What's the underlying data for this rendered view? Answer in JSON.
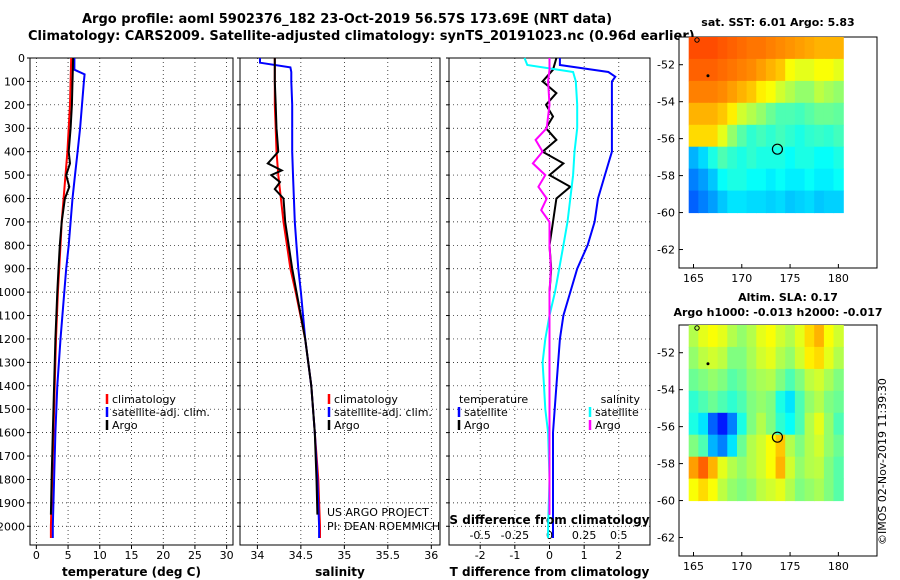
{
  "header": {
    "line1": "Argo profile: aoml 5902376_182 23-Oct-2019 56.57S 173.69E (NRT data)",
    "line2": "Climatology: CARS2009. Satellite-adjusted climatology: synTS_20191023.nc (0.96d earlier)"
  },
  "credits": {
    "project": "US ARGO PROJECT",
    "pi": "PI: DEAN ROEMMICH"
  },
  "timestamp": "©IMOS 02-Nov-2019 11:39:30",
  "colors": {
    "climatology": "#ff0000",
    "satellite": "#0000ff",
    "argo": "#000000",
    "salinity_satellite": "#00ffff",
    "salinity_argo": "#ff00ff"
  },
  "chart_data": [
    {
      "type": "line",
      "title": "",
      "xlabel": "temperature (deg C)",
      "ylabel": "",
      "xlim": [
        -1,
        31
      ],
      "ylim": [
        2080,
        0
      ],
      "xticks": [
        0,
        5,
        10,
        15,
        20,
        25,
        30
      ],
      "yticks": [
        0,
        100,
        200,
        300,
        400,
        500,
        600,
        700,
        800,
        900,
        1000,
        1100,
        1200,
        1300,
        1400,
        1500,
        1600,
        1700,
        1800,
        1900,
        2000
      ],
      "legend": [
        "climatology",
        "satellite-adj. clim.",
        "Argo"
      ],
      "series": [
        {
          "name": "climatology",
          "depth": [
            0,
            100,
            200,
            300,
            400,
            500,
            600,
            700,
            800,
            900,
            1000,
            1200,
            1400,
            1600,
            1800,
            2000,
            2050
          ],
          "values": [
            5.5,
            5.4,
            5.3,
            5.1,
            4.9,
            4.6,
            4.3,
            4.0,
            3.8,
            3.6,
            3.4,
            3.1,
            2.9,
            2.7,
            2.5,
            2.3,
            2.3
          ]
        },
        {
          "name": "satellite-adj. clim.",
          "depth": [
            0,
            50,
            70,
            100,
            200,
            300,
            400,
            500,
            600,
            700,
            800,
            900,
            1000,
            1200,
            1400,
            1600,
            1800,
            2000,
            2050
          ],
          "values": [
            6.0,
            6.0,
            7.6,
            7.5,
            7.2,
            6.9,
            6.5,
            6.1,
            5.7,
            5.4,
            5.1,
            4.7,
            4.4,
            3.8,
            3.3,
            3.0,
            2.8,
            2.6,
            2.6
          ]
        },
        {
          "name": "Argo",
          "depth": [
            0,
            100,
            200,
            300,
            400,
            450,
            500,
            550,
            600,
            700,
            800,
            900,
            1000,
            1200,
            1400,
            1600,
            1800,
            1950
          ],
          "values": [
            5.8,
            5.7,
            5.6,
            5.4,
            5.1,
            5.3,
            4.7,
            5.2,
            4.5,
            4.0,
            3.7,
            3.5,
            3.3,
            3.0,
            2.8,
            2.6,
            2.4,
            2.3
          ]
        }
      ]
    },
    {
      "type": "line",
      "title": "",
      "xlabel": "salinity",
      "ylabel": "",
      "xlim": [
        33.8,
        36.1
      ],
      "ylim": [
        2080,
        0
      ],
      "xticks": [
        34,
        34.5,
        35,
        35.5,
        36
      ],
      "legend": [
        "climatology",
        "satellite-adj. clim.",
        "Argo"
      ],
      "series": [
        {
          "name": "climatology",
          "depth": [
            0,
            100,
            200,
            300,
            400,
            500,
            600,
            700,
            800,
            900,
            1000,
            1200,
            1400,
            1600,
            1800,
            2000,
            2050
          ],
          "values": [
            34.2,
            34.2,
            34.2,
            34.21,
            34.22,
            34.24,
            34.27,
            34.3,
            34.34,
            34.38,
            34.44,
            34.55,
            34.62,
            34.66,
            34.7,
            34.72,
            34.72
          ]
        },
        {
          "name": "satellite-adj. clim.",
          "depth": [
            0,
            20,
            40,
            60,
            100,
            200,
            300,
            400,
            500,
            600,
            700,
            800,
            900,
            1000,
            1200,
            1400,
            1600,
            1800,
            2000,
            2050
          ],
          "values": [
            34.03,
            34.03,
            34.38,
            34.39,
            34.39,
            34.4,
            34.4,
            34.4,
            34.41,
            34.42,
            34.43,
            34.45,
            34.47,
            34.5,
            34.55,
            34.62,
            34.66,
            34.69,
            34.71,
            34.71
          ]
        },
        {
          "name": "Argo",
          "depth": [
            0,
            100,
            200,
            300,
            400,
            450,
            480,
            500,
            530,
            560,
            600,
            700,
            800,
            900,
            1000,
            1200,
            1400,
            1600,
            1800,
            1950
          ],
          "values": [
            34.2,
            34.2,
            34.21,
            34.22,
            34.24,
            34.12,
            34.28,
            34.16,
            34.26,
            34.2,
            34.3,
            34.32,
            34.36,
            34.4,
            34.45,
            34.55,
            34.62,
            34.66,
            34.68,
            34.69
          ]
        }
      ]
    },
    {
      "type": "line",
      "title": "",
      "xlabel": "T difference from climatology",
      "xlabel2": "S difference from climatology",
      "ylabel": "",
      "xlim": [
        -2.9,
        2.9
      ],
      "ylim": [
        2080,
        0
      ],
      "xticks": [
        -2,
        -1,
        0,
        1,
        2
      ],
      "xticks2": [
        -0.5,
        -0.25,
        0,
        0.25,
        0.5
      ],
      "xticklabels2": [
        "-0.5",
        "-0.25",
        "0",
        "0.25",
        "0.5"
      ],
      "legend_titles": [
        "temperature",
        "salinity"
      ],
      "legend": [
        "satellite",
        "Argo",
        "satellite",
        "Argo"
      ],
      "series": [
        {
          "name": "temperature satellite",
          "depth": [
            0,
            30,
            60,
            80,
            100,
            200,
            300,
            400,
            500,
            600,
            700,
            800,
            900,
            1000,
            1100,
            1200,
            1400,
            1600,
            1800,
            2000,
            2050
          ],
          "values": [
            0.3,
            0.3,
            1.7,
            1.9,
            1.8,
            1.8,
            1.8,
            1.8,
            1.6,
            1.4,
            1.3,
            1.1,
            0.8,
            0.6,
            0.4,
            0.3,
            0.2,
            0.1,
            0.1,
            0.1,
            0.1
          ]
        },
        {
          "name": "temperature Argo",
          "depth": [
            0,
            50,
            100,
            150,
            200,
            250,
            300,
            350,
            400,
            450,
            500,
            550,
            600,
            700,
            800,
            900,
            1000,
            1200,
            1400,
            1600,
            1800,
            1950
          ],
          "values": [
            0.2,
            0.1,
            -0.2,
            0.2,
            -0.1,
            0.1,
            -0.1,
            0.2,
            -0.2,
            0.4,
            0.0,
            0.6,
            0.2,
            0.1,
            0.0,
            0.05,
            0.0,
            0.0,
            0.0,
            0.0,
            0.0,
            0.0
          ]
        },
        {
          "name": "salinity satellite",
          "depth": [
            0,
            30,
            60,
            100,
            200,
            300,
            400,
            500,
            600,
            700,
            800,
            900,
            1000,
            1100,
            1200,
            1300,
            1400,
            1500,
            1600,
            1800,
            2000,
            2050
          ],
          "values": [
            -0.18,
            -0.16,
            0.17,
            0.19,
            0.2,
            0.2,
            0.18,
            0.17,
            0.15,
            0.13,
            0.1,
            0.07,
            0.04,
            0.0,
            -0.03,
            -0.05,
            -0.04,
            -0.03,
            -0.01,
            0.0,
            -0.01,
            -0.01
          ]
        },
        {
          "name": "salinity Argo",
          "depth": [
            0,
            50,
            100,
            200,
            300,
            350,
            400,
            450,
            500,
            550,
            600,
            650,
            700,
            800,
            900,
            1000,
            1200,
            1400,
            1600,
            1800,
            1950
          ],
          "values": [
            0.0,
            0.0,
            -0.01,
            0.0,
            -0.02,
            -0.1,
            -0.05,
            -0.12,
            -0.03,
            -0.08,
            -0.02,
            -0.06,
            0.0,
            0.0,
            0.01,
            0.0,
            0.0,
            0.0,
            0.0,
            0.0,
            0.0
          ]
        }
      ]
    },
    {
      "type": "heatmap",
      "title": "sat. SST: 6.01 Argo: 5.83",
      "xticks": [
        165,
        170,
        175,
        180
      ],
      "yticks": [
        -52,
        -54,
        -56,
        -58,
        -60,
        -62
      ],
      "xlim": [
        163.5,
        184
      ],
      "ylim": [
        -63,
        -50.5
      ],
      "data_lon": [
        164.5,
        180.5
      ],
      "data_lat": [
        -60,
        -50.5
      ],
      "float_position": [
        173.69,
        -56.57
      ],
      "marker_position": [
        166.5,
        -52.6
      ],
      "colormap": "jet",
      "grid": [
        [
          0.8,
          0.8,
          0.8,
          0.79,
          0.78,
          0.77,
          0.76,
          0.76,
          0.75,
          0.74,
          0.73,
          0.72,
          0.71,
          0.7,
          0.7,
          0.7
        ],
        [
          0.78,
          0.78,
          0.78,
          0.77,
          0.76,
          0.75,
          0.74,
          0.72,
          0.7,
          0.68,
          0.62,
          0.6,
          0.6,
          0.62,
          0.62,
          0.6
        ],
        [
          0.75,
          0.75,
          0.75,
          0.74,
          0.72,
          0.7,
          0.68,
          0.64,
          0.62,
          0.58,
          0.55,
          0.52,
          0.52,
          0.56,
          0.54,
          0.52
        ],
        [
          0.7,
          0.7,
          0.7,
          0.68,
          0.64,
          0.58,
          0.55,
          0.52,
          0.48,
          0.45,
          0.45,
          0.44,
          0.46,
          0.48,
          0.48,
          0.47
        ],
        [
          0.66,
          0.66,
          0.66,
          0.6,
          0.52,
          0.46,
          0.42,
          0.44,
          0.42,
          0.44,
          0.42,
          0.4,
          0.42,
          0.43,
          0.42,
          0.44
        ],
        [
          0.3,
          0.34,
          0.4,
          0.45,
          0.42,
          0.4,
          0.42,
          0.4,
          0.4,
          0.4,
          0.38,
          0.4,
          0.4,
          0.38,
          0.38,
          0.4
        ],
        [
          0.25,
          0.28,
          0.32,
          0.38,
          0.4,
          0.4,
          0.38,
          0.38,
          0.36,
          0.38,
          0.36,
          0.36,
          0.38,
          0.36,
          0.36,
          0.38
        ],
        [
          0.22,
          0.25,
          0.28,
          0.32,
          0.35,
          0.35,
          0.34,
          0.34,
          0.33,
          0.34,
          0.32,
          0.33,
          0.34,
          0.32,
          0.33,
          0.33
        ]
      ]
    },
    {
      "type": "heatmap",
      "title": "Altim. SLA: 0.17",
      "subtitle": "Argo h1000: -0.013 h2000: -0.017",
      "xticks": [
        165,
        170,
        175,
        180
      ],
      "yticks": [
        -52,
        -54,
        -56,
        -58,
        -60,
        -62
      ],
      "xlim": [
        163.5,
        184
      ],
      "ylim": [
        -63,
        -50.5
      ],
      "data_lon": [
        164.5,
        180.5
      ],
      "data_lat": [
        -60,
        -50.5
      ],
      "float_position": [
        173.69,
        -56.57
      ],
      "marker_position": [
        166.5,
        -52.6
      ],
      "colormap": "jet",
      "grid": [
        [
          0.55,
          0.6,
          0.62,
          0.6,
          0.55,
          0.52,
          0.55,
          0.6,
          0.62,
          0.58,
          0.55,
          0.6,
          0.66,
          0.7,
          0.62,
          0.58
        ],
        [
          0.52,
          0.56,
          0.58,
          0.56,
          0.5,
          0.5,
          0.54,
          0.58,
          0.6,
          0.55,
          0.52,
          0.58,
          0.64,
          0.66,
          0.6,
          0.55
        ],
        [
          0.48,
          0.5,
          0.52,
          0.5,
          0.46,
          0.48,
          0.52,
          0.54,
          0.55,
          0.5,
          0.45,
          0.5,
          0.56,
          0.58,
          0.54,
          0.5
        ],
        [
          0.42,
          0.45,
          0.48,
          0.45,
          0.42,
          0.45,
          0.5,
          0.52,
          0.5,
          0.4,
          0.35,
          0.45,
          0.52,
          0.55,
          0.5,
          0.48
        ],
        [
          0.4,
          0.35,
          0.22,
          0.15,
          0.25,
          0.4,
          0.5,
          0.55,
          0.5,
          0.42,
          0.38,
          0.45,
          0.55,
          0.6,
          0.52,
          0.45
        ],
        [
          0.5,
          0.45,
          0.3,
          0.25,
          0.35,
          0.48,
          0.55,
          0.58,
          0.62,
          0.68,
          0.55,
          0.5,
          0.55,
          0.58,
          0.52,
          0.48
        ],
        [
          0.72,
          0.78,
          0.7,
          0.6,
          0.55,
          0.52,
          0.55,
          0.58,
          0.62,
          0.7,
          0.58,
          0.52,
          0.55,
          0.56,
          0.5,
          0.46
        ],
        [
          0.62,
          0.66,
          0.62,
          0.56,
          0.52,
          0.5,
          0.52,
          0.56,
          0.58,
          0.6,
          0.55,
          0.5,
          0.52,
          0.54,
          0.5,
          0.46
        ]
      ]
    }
  ]
}
